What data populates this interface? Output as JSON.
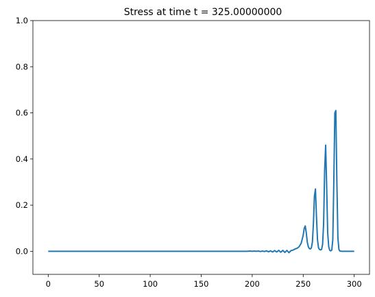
{
  "chart_data": {
    "type": "line",
    "title": "Stress at time t =   325.00000000",
    "xlabel": "",
    "ylabel": "",
    "xlim": [
      -15,
      315
    ],
    "ylim": [
      -0.1,
      1.0
    ],
    "xticks": [
      0,
      50,
      100,
      150,
      200,
      250,
      300
    ],
    "xtick_labels": [
      "0",
      "50",
      "100",
      "150",
      "200",
      "250",
      "300"
    ],
    "yticks": [
      0.0,
      0.2,
      0.4,
      0.6,
      0.8,
      1.0
    ],
    "ytick_labels": [
      "0.0",
      "0.2",
      "0.4",
      "0.6",
      "0.8",
      "1.0"
    ],
    "grid": false,
    "line_color": "#1f77b4",
    "series": [
      {
        "x": [
          0,
          190,
          195,
          198,
          200,
          202,
          204,
          206,
          208,
          210,
          212,
          214,
          216,
          218,
          220,
          222,
          224,
          226,
          228,
          230,
          232,
          234,
          236,
          238,
          240,
          242,
          244,
          246,
          248,
          250,
          251,
          252,
          253,
          254,
          255,
          256,
          257,
          258,
          259,
          260,
          261,
          262,
          263,
          264,
          265,
          266,
          267,
          268,
          269,
          270,
          271,
          272,
          273,
          274,
          275,
          276,
          277,
          278,
          279,
          280,
          281,
          282,
          283,
          284,
          285,
          286,
          288,
          290,
          295,
          300
        ],
        "y": [
          0.0,
          0.0,
          0.0,
          0.001,
          0.0,
          0.001,
          0.0,
          0.001,
          -0.001,
          0.001,
          -0.001,
          0.002,
          -0.002,
          0.002,
          -0.003,
          0.003,
          -0.003,
          0.004,
          -0.004,
          0.004,
          -0.005,
          0.004,
          -0.006,
          0.003,
          0.005,
          0.01,
          0.013,
          0.02,
          0.035,
          0.07,
          0.1,
          0.11,
          0.08,
          0.04,
          0.02,
          0.012,
          0.01,
          0.015,
          0.04,
          0.12,
          0.24,
          0.27,
          0.15,
          0.05,
          0.015,
          0.008,
          0.006,
          0.008,
          0.03,
          0.12,
          0.35,
          0.46,
          0.28,
          0.08,
          0.02,
          0.004,
          0.002,
          0.005,
          0.05,
          0.3,
          0.6,
          0.61,
          0.3,
          0.06,
          0.008,
          0.001,
          0.0,
          0.0,
          0.0,
          0.0
        ]
      }
    ]
  }
}
